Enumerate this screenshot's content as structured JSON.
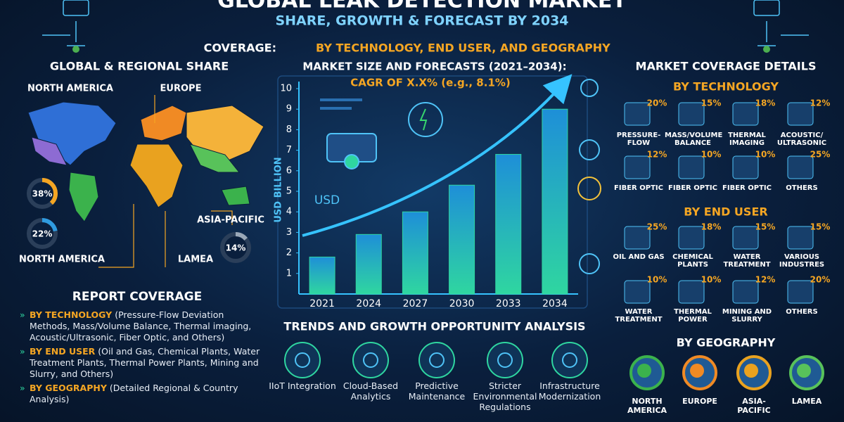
{
  "header": {
    "title": "GLOBAL LEAK DETECTION MARKET",
    "subtitle": "SHARE, GROWTH & FORECAST BY 2034",
    "coverage_label": "COVERAGE:",
    "coverage_text": "BY TECHNOLOGY, END USER, AND GEOGRAPHY"
  },
  "regional_share": {
    "title": "GLOBAL & REGIONAL SHARE",
    "map_labels": [
      "NORTH AMERICA",
      "EUROPE",
      "ASIA-PACIFIC",
      "LAMEA",
      "NORTH AMERICA"
    ],
    "donuts": {
      "values": [
        38,
        22,
        14
      ],
      "value_labels": [
        "38%",
        "22%",
        "14%"
      ]
    }
  },
  "report_coverage": {
    "title": "REPORT COVERAGE",
    "items": [
      {
        "heading": "BY TECHNOLOGY",
        "text": "(Pressure-Flow Deviation Methods, Mass/Volume Balance, Thermal imaging, Acoustic/Ultrasonic, Fiber Optic, and Others)"
      },
      {
        "heading": "BY END USER",
        "text": "(Oil and Gas, Chemical Plants, Water Treatment Plants, Thermal Power Plants, Mining and Slurry, and Others)"
      },
      {
        "heading": "BY GEOGRAPHY",
        "text": "(Detailed Regional & Country Analysis)"
      }
    ]
  },
  "chart_data": {
    "type": "bar",
    "title": "MARKET SIZE AND FORECASTS (2021–2034):",
    "subtitle": "CAGR OF X.X% (e.g., 8.1%)",
    "y_label": "USD BILLION",
    "annotation": "USD",
    "categories": [
      "2021",
      "2024",
      "2027",
      "2030",
      "2033",
      "2034"
    ],
    "values": [
      1.8,
      2.9,
      4.0,
      5.3,
      6.8,
      9.0
    ],
    "color": "#2fd6a0",
    "ylim": [
      0,
      10
    ],
    "yticks": [
      1,
      2,
      3,
      4,
      5,
      6,
      7,
      8,
      9,
      10
    ]
  },
  "trends": {
    "title": "TRENDS AND GROWTH OPPORTUNITY ANALYSIS",
    "items": [
      "IIoT Integration",
      "Cloud-Based Analytics",
      "Predictive Maintenance",
      "Stricter Environmental Regulations",
      "Infrastructure Modernization"
    ]
  },
  "coverage_details": {
    "title": "MARKET COVERAGE DETAILS",
    "technology": {
      "title": "BY TECHNOLOGY",
      "items": [
        {
          "name": "PRESSURE-FLOW",
          "share": "20%"
        },
        {
          "name": "MASS/VOLUME BALANCE",
          "share": "15%"
        },
        {
          "name": "THERMAL IMAGING",
          "share": "18%"
        },
        {
          "name": "ACOUSTIC/ ULTRASONIC",
          "share": "12%"
        },
        {
          "name": "FIBER OPTIC",
          "share": "12%"
        },
        {
          "name": "FIBER OPTIC",
          "share": "10%"
        },
        {
          "name": "FIBER OPTIC",
          "share": "10%"
        },
        {
          "name": "OTHERS",
          "share": "25%"
        }
      ]
    },
    "end_user": {
      "title": "BY END USER",
      "items": [
        {
          "name": "OIL AND GAS",
          "share": "25%"
        },
        {
          "name": "CHEMICAL PLANTS",
          "share": "18%"
        },
        {
          "name": "WATER TREATMENT",
          "share": "15%"
        },
        {
          "name": "VARIOUS INDUSTRES",
          "share": "15%"
        },
        {
          "name": "WATER TREATMENT",
          "share": "10%"
        },
        {
          "name": "THERMAL POWER",
          "share": "10%"
        },
        {
          "name": "MINING AND SLURRY",
          "share": "12%"
        },
        {
          "name": "OTHERS",
          "share": "20%"
        }
      ]
    },
    "geography": {
      "title": "BY GEOGRAPHY",
      "items": [
        "NORTH AMERICA",
        "EUROPE",
        "ASIA-PACIFIC",
        "LAMEA"
      ]
    }
  }
}
